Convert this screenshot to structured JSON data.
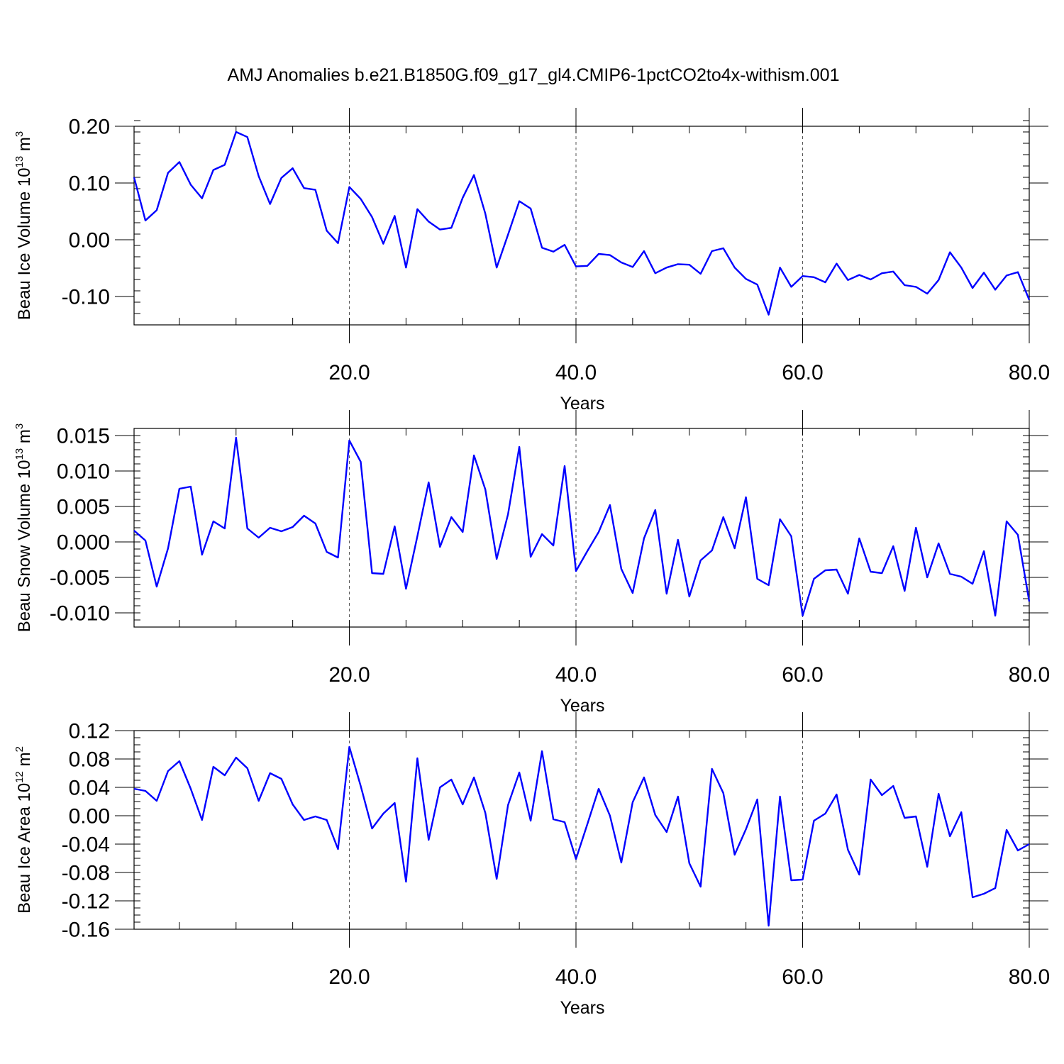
{
  "title": "AMJ Anomalies b.e21.B1850G.f09_g17_gl4.CMIP6-1pctCO2to4x-withism.001",
  "colors": {
    "series": "#0000ff",
    "grid": "#555555",
    "axes": "#000000"
  },
  "chart_data": [
    {
      "type": "line",
      "ylabel": "Beau Ice Volume",
      "yunit_base": "10",
      "yunit_exp": "13",
      "yunit_suffix": "m",
      "yunit_suffix_exp": "3",
      "xlabel": "Years",
      "xlim": [
        1,
        80
      ],
      "ylim": [
        -0.15,
        0.2
      ],
      "xticks": [
        20,
        40,
        60,
        80
      ],
      "xtick_labels": [
        "20.0",
        "40.0",
        "60.0",
        "80.0"
      ],
      "yticks": [
        -0.1,
        0.0,
        0.1,
        0.2
      ],
      "ytick_labels": [
        "-0.10",
        "0.00",
        "0.10",
        "0.20"
      ],
      "ytick_minor_step": 0.02,
      "grid": "vertical dashed at major x ticks",
      "series": [
        {
          "x": [
            1,
            2,
            3,
            4,
            5,
            6,
            7,
            8,
            9,
            10,
            11,
            12,
            13,
            14,
            15,
            16,
            17,
            18,
            19,
            20,
            21,
            22,
            23,
            24,
            25,
            26,
            27,
            28,
            29,
            30,
            31,
            32,
            33,
            34,
            35,
            36,
            37,
            38,
            39,
            40,
            41,
            42,
            43,
            44,
            45,
            46,
            47,
            48,
            49,
            50,
            51,
            52,
            53,
            54,
            55,
            56,
            57,
            58,
            59,
            60,
            61,
            62,
            63,
            64,
            65,
            66,
            67,
            68,
            69,
            70,
            71,
            72,
            73,
            74,
            75,
            76,
            77,
            78,
            79,
            80
          ],
          "values": [
            0.11,
            0.034,
            0.052,
            0.118,
            0.137,
            0.097,
            0.073,
            0.123,
            0.132,
            0.19,
            0.181,
            0.112,
            0.063,
            0.109,
            0.126,
            0.091,
            0.088,
            0.016,
            -0.006,
            0.093,
            0.072,
            0.04,
            -0.007,
            0.042,
            -0.049,
            0.054,
            0.032,
            0.018,
            0.021,
            0.074,
            0.114,
            0.046,
            -0.049,
            0.009,
            0.068,
            0.055,
            -0.014,
            -0.021,
            -0.009,
            -0.047,
            -0.046,
            -0.025,
            -0.027,
            -0.04,
            -0.048,
            -0.02,
            -0.059,
            -0.049,
            -0.043,
            -0.044,
            -0.06,
            -0.02,
            -0.015,
            -0.049,
            -0.069,
            -0.079,
            -0.132,
            -0.049,
            -0.083,
            -0.064,
            -0.066,
            -0.075,
            -0.042,
            -0.071,
            -0.062,
            -0.07,
            -0.059,
            -0.056,
            -0.08,
            -0.083,
            -0.095,
            -0.071,
            -0.022,
            -0.049,
            -0.085,
            -0.058,
            -0.088,
            -0.063,
            -0.057,
            -0.106
          ]
        }
      ]
    },
    {
      "type": "line",
      "ylabel": "Beau Snow Volume",
      "yunit_base": "10",
      "yunit_exp": "13",
      "yunit_suffix": "m",
      "yunit_suffix_exp": "3",
      "xlabel": "Years",
      "xlim": [
        1,
        80
      ],
      "ylim": [
        -0.012,
        0.016
      ],
      "xticks": [
        20,
        40,
        60,
        80
      ],
      "xtick_labels": [
        "20.0",
        "40.0",
        "60.0",
        "80.0"
      ],
      "yticks": [
        -0.01,
        -0.005,
        0.0,
        0.005,
        0.01,
        0.015
      ],
      "ytick_labels": [
        "-0.010",
        "-0.005",
        "0.000",
        "0.005",
        "0.010",
        "0.015"
      ],
      "ytick_minor_step": 0.001,
      "grid": "vertical dashed at major x ticks",
      "series": [
        {
          "x": [
            1,
            2,
            3,
            4,
            5,
            6,
            7,
            8,
            9,
            10,
            11,
            12,
            13,
            14,
            15,
            16,
            17,
            18,
            19,
            20,
            21,
            22,
            23,
            24,
            25,
            26,
            27,
            28,
            29,
            30,
            31,
            32,
            33,
            34,
            35,
            36,
            37,
            38,
            39,
            40,
            41,
            42,
            43,
            44,
            45,
            46,
            47,
            48,
            49,
            50,
            51,
            52,
            53,
            54,
            55,
            56,
            57,
            58,
            59,
            60,
            61,
            62,
            63,
            64,
            65,
            66,
            67,
            68,
            69,
            70,
            71,
            72,
            73,
            74,
            75,
            76,
            77,
            78,
            79,
            80
          ],
          "values": [
            0.0016,
            0.0002,
            -0.0063,
            -0.0009,
            0.0075,
            0.0078,
            -0.0018,
            0.0029,
            0.0019,
            0.0147,
            0.0019,
            0.0006,
            0.002,
            0.0015,
            0.0021,
            0.0037,
            0.0026,
            -0.0014,
            -0.0022,
            0.0143,
            0.0113,
            -0.0044,
            -0.0045,
            0.0022,
            -0.0066,
            0.0008,
            0.0084,
            -0.0007,
            0.0035,
            0.0014,
            0.0122,
            0.0074,
            -0.0024,
            0.0039,
            0.0134,
            -0.0021,
            0.0011,
            -0.0005,
            0.0107,
            -0.0041,
            -0.0013,
            0.0014,
            0.0052,
            -0.0038,
            -0.0072,
            0.0005,
            0.0045,
            -0.0073,
            0.0003,
            -0.0077,
            -0.0026,
            -0.0012,
            0.0035,
            -0.0009,
            0.0063,
            -0.0052,
            -0.0061,
            0.0032,
            0.0008,
            -0.0104,
            -0.0052,
            -0.004,
            -0.0039,
            -0.0073,
            0.0005,
            -0.0042,
            -0.0044,
            -0.0006,
            -0.0069,
            0.002,
            -0.005,
            -0.0002,
            -0.0045,
            -0.0049,
            -0.0059,
            -0.0013,
            -0.0104,
            0.0029,
            0.001,
            -0.0084
          ]
        }
      ]
    },
    {
      "type": "line",
      "ylabel": "Beau Ice Area",
      "yunit_base": "10",
      "yunit_exp": "12",
      "yunit_suffix": "m",
      "yunit_suffix_exp": "2",
      "xlabel": "Years",
      "xlim": [
        1,
        80
      ],
      "ylim": [
        -0.16,
        0.12
      ],
      "xticks": [
        20,
        40,
        60,
        80
      ],
      "xtick_labels": [
        "20.0",
        "40.0",
        "60.0",
        "80.0"
      ],
      "yticks": [
        -0.16,
        -0.12,
        -0.08,
        -0.04,
        0.0,
        0.04,
        0.08,
        0.12
      ],
      "ytick_labels": [
        "-0.16",
        "-0.12",
        "-0.08",
        "-0.04",
        "0.00",
        "0.04",
        "0.08",
        "0.12"
      ],
      "ytick_minor_step": 0.01,
      "grid": "vertical dashed at major x ticks",
      "series": [
        {
          "x": [
            1,
            2,
            3,
            4,
            5,
            6,
            7,
            8,
            9,
            10,
            11,
            12,
            13,
            14,
            15,
            16,
            17,
            18,
            19,
            20,
            21,
            22,
            23,
            24,
            25,
            26,
            27,
            28,
            29,
            30,
            31,
            32,
            33,
            34,
            35,
            36,
            37,
            38,
            39,
            40,
            41,
            42,
            43,
            44,
            45,
            46,
            47,
            48,
            49,
            50,
            51,
            52,
            53,
            54,
            55,
            56,
            57,
            58,
            59,
            60,
            61,
            62,
            63,
            64,
            65,
            66,
            67,
            68,
            69,
            70,
            71,
            72,
            73,
            74,
            75,
            76,
            77,
            78,
            79,
            80
          ],
          "values": [
            0.038,
            0.035,
            0.021,
            0.063,
            0.077,
            0.038,
            -0.006,
            0.069,
            0.057,
            0.082,
            0.067,
            0.021,
            0.06,
            0.052,
            0.016,
            -0.006,
            -0.001,
            -0.006,
            -0.047,
            0.097,
            0.042,
            -0.018,
            0.003,
            0.018,
            -0.093,
            0.081,
            -0.034,
            0.04,
            0.051,
            0.016,
            0.054,
            0.004,
            -0.089,
            0.015,
            0.061,
            -0.007,
            0.091,
            -0.005,
            -0.009,
            -0.061,
            -0.012,
            0.038,
            0.0,
            -0.066,
            0.019,
            0.054,
            0.001,
            -0.023,
            0.027,
            -0.067,
            -0.1,
            0.066,
            0.032,
            -0.055,
            -0.019,
            0.023,
            -0.155,
            0.027,
            -0.091,
            -0.09,
            -0.007,
            0.003,
            0.03,
            -0.048,
            -0.083,
            0.051,
            0.029,
            0.042,
            -0.003,
            -0.001,
            -0.072,
            0.031,
            -0.029,
            0.005,
            -0.115,
            -0.11,
            -0.102,
            -0.02,
            -0.049,
            -0.04
          ]
        }
      ]
    }
  ]
}
